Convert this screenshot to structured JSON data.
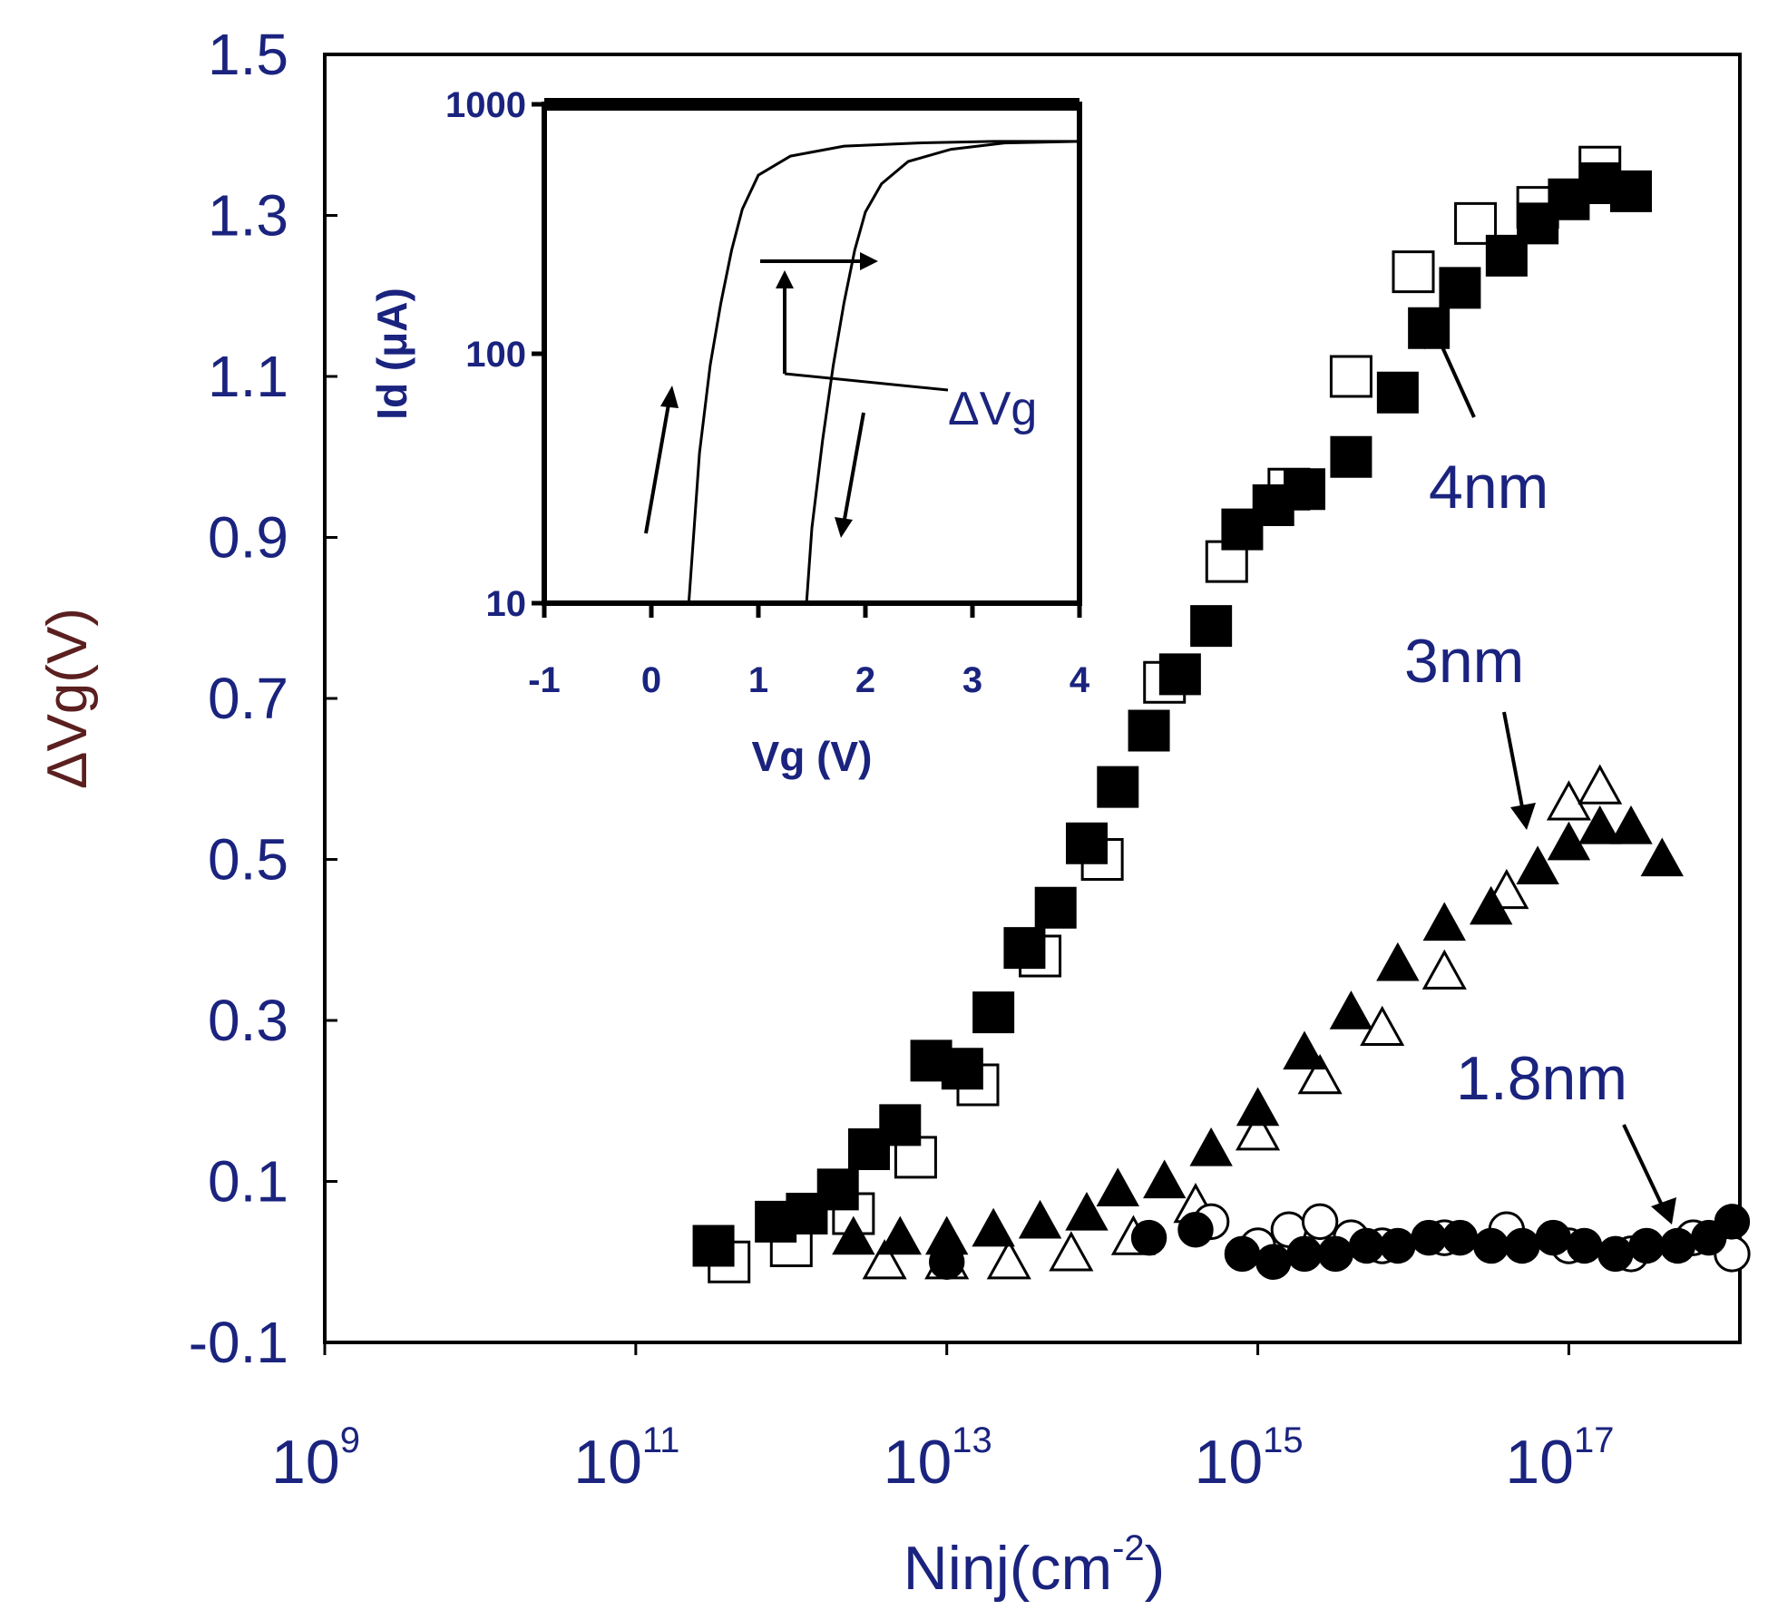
{
  "chart_data": {
    "type": "scatter",
    "xscale": "log",
    "xlabel": "Ninj(cm",
    "xlabel_sup": "-2",
    "xlabel_suffix": ")",
    "ylabel": "ΔVg(V)",
    "ylim": [
      -0.1,
      1.5
    ],
    "xlim_log10": [
      9,
      18.1
    ],
    "yticks": [
      {
        "value": 1.5,
        "label": "1.5"
      },
      {
        "value": 1.3,
        "label": "1.3"
      },
      {
        "value": 1.1,
        "label": "1.1"
      },
      {
        "value": 0.9,
        "label": "0.9"
      },
      {
        "value": 0.7,
        "label": "0.7"
      },
      {
        "value": 0.5,
        "label": "0.5"
      },
      {
        "value": 0.3,
        "label": "0.3"
      },
      {
        "value": 0.1,
        "label": "0.1"
      },
      {
        "value": -0.1,
        "label": "-0.1"
      }
    ],
    "xticks": [
      {
        "exp": 9,
        "base": "10",
        "sup": "9"
      },
      {
        "exp": 11,
        "base": "10",
        "sup": "11"
      },
      {
        "exp": 13,
        "base": "10",
        "sup": "13"
      },
      {
        "exp": 15,
        "base": "10",
        "sup": "15"
      },
      {
        "exp": 17,
        "base": "10",
        "sup": "17"
      }
    ],
    "series": [
      {
        "name": "4nm-filled",
        "marker": "square-filled",
        "log10x": [
          11.5,
          11.9,
          12.1,
          12.3,
          12.5,
          12.7,
          12.9,
          13.1,
          13.3,
          13.5,
          13.7,
          13.9,
          14.1,
          14.3,
          14.5,
          14.7,
          14.9,
          15.1,
          15.3,
          15.6,
          15.9,
          16.1,
          16.3,
          16.6,
          16.8,
          17.0,
          17.2,
          17.4
        ],
        "y": [
          0.02,
          0.05,
          0.06,
          0.09,
          0.14,
          0.17,
          0.25,
          0.24,
          0.31,
          0.39,
          0.44,
          0.52,
          0.59,
          0.66,
          0.73,
          0.79,
          0.91,
          0.94,
          0.96,
          1.0,
          1.08,
          1.16,
          1.21,
          1.25,
          1.29,
          1.32,
          1.34,
          1.33
        ]
      },
      {
        "name": "4nm-open",
        "marker": "square-open",
        "log10x": [
          11.6,
          12.0,
          12.4,
          12.8,
          13.2,
          13.6,
          14.0,
          14.4,
          14.8,
          15.2,
          15.6,
          16.0,
          16.4,
          16.8,
          17.2
        ],
        "y": [
          0.0,
          0.02,
          0.06,
          0.13,
          0.22,
          0.38,
          0.5,
          0.72,
          0.87,
          0.96,
          1.1,
          1.23,
          1.29,
          1.31,
          1.36
        ]
      },
      {
        "name": "3nm-filled",
        "marker": "triangle-filled",
        "log10x": [
          12.4,
          12.7,
          13.0,
          13.3,
          13.6,
          13.9,
          14.1,
          14.4,
          14.7,
          15.0,
          15.3,
          15.6,
          15.9,
          16.2,
          16.5,
          16.8,
          17.0,
          17.2,
          17.4,
          17.6
        ],
        "y": [
          0.03,
          0.03,
          0.03,
          0.04,
          0.05,
          0.06,
          0.09,
          0.1,
          0.14,
          0.19,
          0.26,
          0.31,
          0.37,
          0.42,
          0.44,
          0.49,
          0.52,
          0.54,
          0.54,
          0.5
        ]
      },
      {
        "name": "3nm-open",
        "marker": "triangle-open",
        "log10x": [
          12.6,
          13.0,
          13.4,
          13.8,
          14.2,
          14.6,
          15.0,
          15.4,
          15.8,
          16.2,
          16.6,
          17.0,
          17.2
        ],
        "y": [
          0.0,
          0.0,
          0.0,
          0.01,
          0.03,
          0.07,
          0.16,
          0.23,
          0.29,
          0.36,
          0.46,
          0.57,
          0.59
        ]
      },
      {
        "name": "1.8nm-filled",
        "marker": "circle-filled",
        "log10x": [
          13.0,
          14.3,
          14.6,
          14.9,
          15.1,
          15.3,
          15.5,
          15.7,
          15.9,
          16.1,
          16.3,
          16.5,
          16.7,
          16.9,
          17.1,
          17.3,
          17.5,
          17.7,
          17.9,
          18.05
        ],
        "y": [
          0.0,
          0.03,
          0.04,
          0.01,
          0.0,
          0.01,
          0.01,
          0.02,
          0.02,
          0.03,
          0.03,
          0.02,
          0.02,
          0.03,
          0.02,
          0.01,
          0.02,
          0.02,
          0.03,
          0.05
        ]
      },
      {
        "name": "1.8nm-open",
        "marker": "circle-open",
        "log10x": [
          14.7,
          15.0,
          15.2,
          15.4,
          15.6,
          15.8,
          16.2,
          16.6,
          17.0,
          17.4,
          17.8,
          18.05
        ],
        "y": [
          0.05,
          0.02,
          0.04,
          0.05,
          0.03,
          0.02,
          0.03,
          0.04,
          0.02,
          0.01,
          0.03,
          0.01
        ]
      }
    ],
    "annotations": [
      {
        "text": "4nm"
      },
      {
        "text": "3nm"
      },
      {
        "text": "1.8nm"
      }
    ],
    "inset": {
      "type": "line",
      "yscale": "log",
      "ylabel": "Id (μA)",
      "xlabel": "Vg (V)",
      "xlim": [
        -1,
        4
      ],
      "ylim": [
        10,
        1000
      ],
      "xticks": [
        "-1",
        "0",
        "1",
        "2",
        "3",
        "4"
      ],
      "yticks": [
        "1000",
        "100",
        "10"
      ],
      "annotation": "ΔVg",
      "curves": [
        {
          "name": "forward",
          "x": [
            0.35,
            0.4,
            0.45,
            0.55,
            0.65,
            0.75,
            0.85,
            1.0,
            1.3,
            1.8,
            2.5,
            3.2,
            4.0
          ],
          "id": [
            10,
            20,
            40,
            90,
            160,
            260,
            380,
            520,
            620,
            680,
            700,
            710,
            710
          ]
        },
        {
          "name": "reverse",
          "x": [
            1.45,
            1.5,
            1.6,
            1.7,
            1.8,
            1.9,
            2.0,
            2.15,
            2.4,
            2.8,
            3.3,
            4.0
          ],
          "id": [
            10,
            20,
            45,
            90,
            160,
            260,
            370,
            480,
            590,
            660,
            700,
            710
          ]
        }
      ]
    }
  }
}
